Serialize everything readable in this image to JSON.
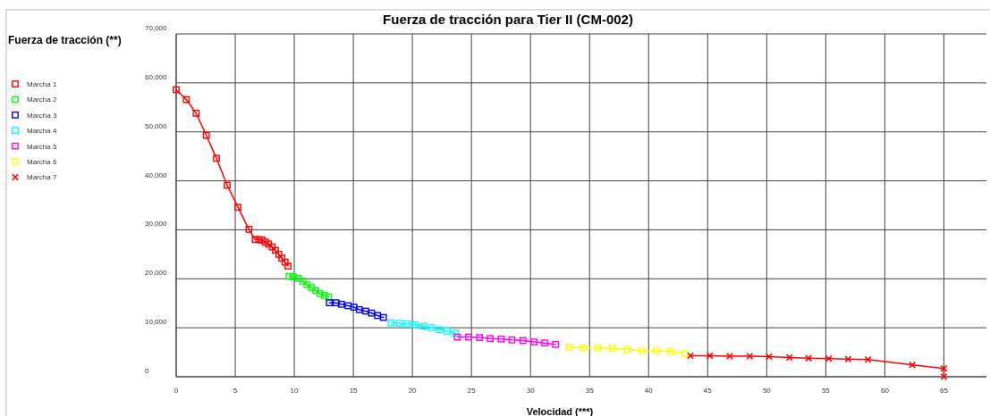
{
  "chart_data": {
    "type": "line",
    "title": "Fuerza de tracción para Tier II (CM-002)",
    "xlabel": "Velocidad (***)",
    "ylabel": "Fuerza de tracción (**)",
    "xlim": [
      0,
      68.6
    ],
    "xticks": [
      0,
      5,
      10,
      15,
      20,
      25,
      30,
      35,
      40,
      45,
      50,
      55,
      60,
      65
    ],
    "ylim": [
      0,
      70000
    ],
    "yticks": [
      0,
      {
        "value": 10000,
        "label": "10,000"
      },
      {
        "value": 20000,
        "label": "20,000"
      },
      {
        "value": 30000,
        "label": "30,000"
      },
      {
        "value": 40000,
        "label": "40,000"
      },
      {
        "value": 50000,
        "label": "50,000"
      },
      {
        "value": 60000,
        "label": "60,000"
      },
      {
        "value": 70000,
        "label": "70,000"
      }
    ],
    "grid": true,
    "legend": "left",
    "line_style": "solid",
    "series": [
      {
        "name": "Marcha 1",
        "color": "#ff0000",
        "marker": "square",
        "x": [
          0,
          0.86,
          1.69,
          2.55,
          3.41,
          4.32,
          5.23,
          6.16,
          6.69,
          7.0,
          7.27,
          7.55,
          7.83,
          8.13,
          8.4,
          8.69,
          8.94,
          9.22,
          9.47
        ],
        "values": [
          58600,
          56600,
          53800,
          49300,
          44600,
          39100,
          34600,
          30100,
          28000,
          28000,
          27900,
          27500,
          27100,
          26500,
          25800,
          25000,
          24200,
          23400,
          22600
        ]
      },
      {
        "name": "Marcha 2",
        "color": "#00ff00",
        "marker": "square",
        "x": [
          9.57,
          9.9,
          10.33,
          10.73,
          11.08,
          11.46,
          11.82,
          12.17,
          12.55,
          12.9
        ],
        "values": [
          20500,
          20400,
          20100,
          19500,
          18800,
          18200,
          17600,
          17000,
          16600,
          16300
        ]
      },
      {
        "name": "Marcha 3",
        "color": "#0000ff",
        "marker": "square",
        "x": [
          12.97,
          13.53,
          13.99,
          14.55,
          15.05,
          15.5,
          16.04,
          16.54,
          17.05,
          17.55
        ],
        "values": [
          15100,
          15100,
          14800,
          14500,
          14200,
          13700,
          13400,
          13000,
          12500,
          12100
        ]
      },
      {
        "name": "Marcha 4",
        "color": "#00ffff",
        "marker": "square",
        "x": [
          18.2,
          18.91,
          19.54,
          20.22,
          20.93,
          21.61,
          22.3,
          22.95,
          23.64
        ],
        "values": [
          11000,
          10900,
          10800,
          10600,
          10300,
          10000,
          9600,
          9300,
          8900
        ]
      },
      {
        "name": "Marcha 5",
        "color": "#ff00ff",
        "marker": "square",
        "x": [
          23.8,
          24.75,
          25.68,
          26.59,
          27.52,
          28.43,
          29.37,
          30.3,
          31.21,
          32.12
        ],
        "values": [
          8100,
          8100,
          8000,
          7800,
          7700,
          7500,
          7400,
          7100,
          6900,
          6600
        ]
      },
      {
        "name": "Marcha 6",
        "color": "#ffff00",
        "marker": "square",
        "x": [
          33.26,
          34.49,
          35.73,
          36.94,
          38.18,
          39.42,
          40.66,
          41.87,
          43.08
        ],
        "values": [
          6000,
          5900,
          5900,
          5800,
          5600,
          5300,
          5300,
          5200,
          4700
        ]
      },
      {
        "name": "Marcha 7",
        "color": "#ff0000",
        "marker": "cross",
        "x": [
          43.54,
          45.18,
          46.87,
          48.56,
          50.2,
          51.92,
          53.54,
          55.25,
          56.89,
          58.58,
          62.33,
          65,
          65
        ],
        "values": [
          4300,
          4300,
          4200,
          4200,
          4100,
          3900,
          3800,
          3700,
          3600,
          3500,
          2400,
          1700,
          0
        ]
      }
    ]
  }
}
